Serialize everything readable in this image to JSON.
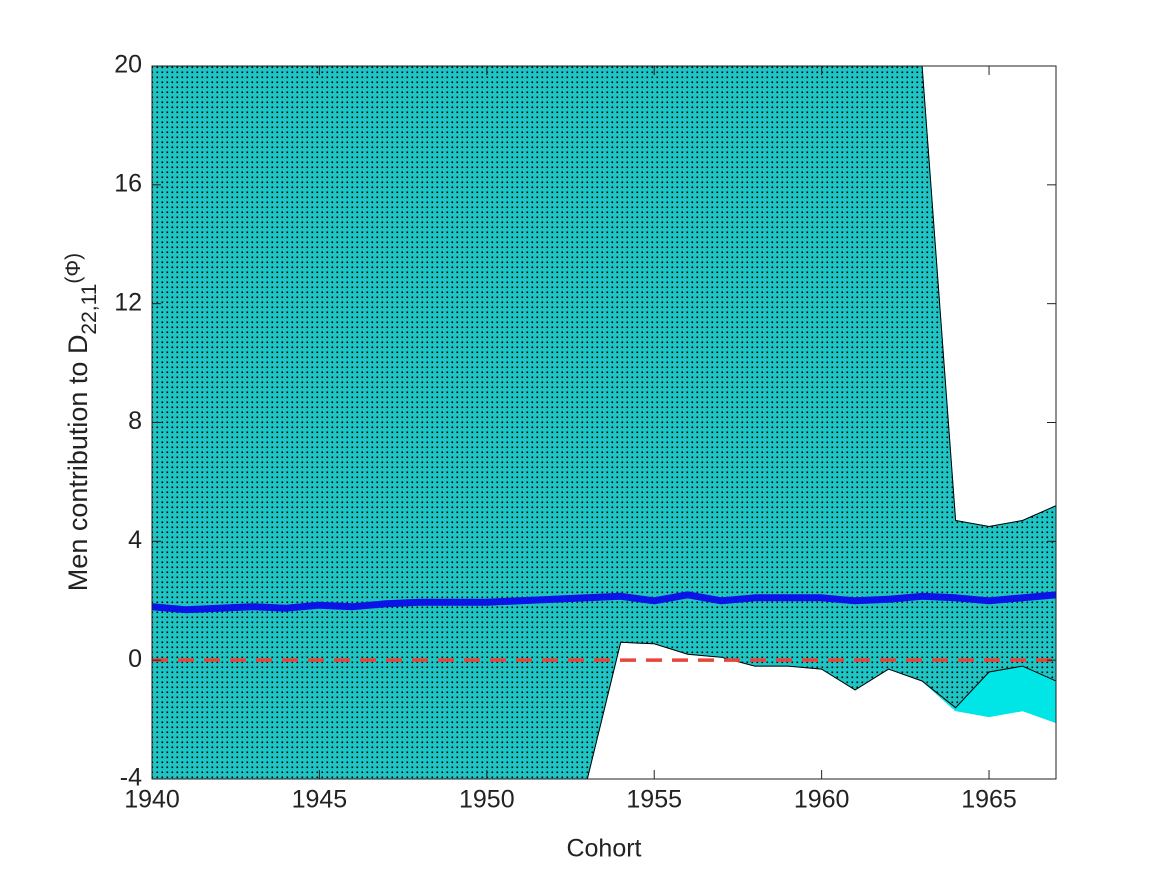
{
  "chart_data": {
    "type": "line",
    "xlabel": "Cohort",
    "ylabel": {
      "main": "Men contribution to D",
      "sub": "22,11",
      "suffix": "(Φ)"
    },
    "x": [
      1940,
      1941,
      1942,
      1943,
      1944,
      1945,
      1946,
      1947,
      1948,
      1949,
      1950,
      1951,
      1952,
      1953,
      1954,
      1955,
      1956,
      1957,
      1958,
      1959,
      1960,
      1961,
      1962,
      1963,
      1964,
      1965,
      1966,
      1967
    ],
    "xlim": [
      1940,
      1967
    ],
    "xticks": [
      1940,
      1945,
      1950,
      1955,
      1960,
      1965
    ],
    "ylim": [
      -4,
      20
    ],
    "yticks": [
      -4,
      0,
      4,
      8,
      12,
      16,
      20
    ],
    "bands": [
      {
        "color": "#00e5e5",
        "lower": [
          -4,
          -4,
          -4,
          -4,
          -4,
          -4,
          -4,
          -4,
          -4,
          -4,
          -4,
          -4,
          -4,
          -4,
          0.6,
          0.55,
          0.2,
          0.1,
          -0.2,
          -0.2,
          -0.3,
          -1.0,
          -0.3,
          -0.7,
          -1.7,
          -1.9,
          -1.7,
          -2.1
        ],
        "upper": [
          20,
          20,
          20,
          20,
          20,
          20,
          20,
          20,
          20,
          20,
          20,
          20,
          20,
          20,
          20,
          20,
          20,
          20,
          20,
          20,
          20,
          20,
          20,
          20,
          4.7,
          4.5,
          4.7,
          5.2
        ]
      },
      {
        "color": "#1fc4c4",
        "pattern": "dots",
        "lower": [
          -4,
          -4,
          -4,
          -4,
          -4,
          -4,
          -4,
          -4,
          -4,
          -4,
          -4,
          -4,
          -4,
          -4,
          0.6,
          0.55,
          0.2,
          0.1,
          -0.2,
          -0.2,
          -0.3,
          -1.0,
          -0.3,
          -0.7,
          -1.6,
          -0.4,
          -0.2,
          -0.7
        ],
        "upper": [
          20,
          20,
          20,
          20,
          20,
          20,
          20,
          20,
          20,
          20,
          20,
          20,
          20,
          20,
          20,
          20,
          20,
          20,
          20,
          20,
          20,
          20,
          20,
          20,
          4.7,
          4.5,
          4.7,
          5.2
        ]
      }
    ],
    "series": [
      {
        "color": "#0a14e6",
        "values": [
          1.8,
          1.7,
          1.75,
          1.8,
          1.75,
          1.85,
          1.8,
          1.9,
          1.95,
          1.95,
          1.95,
          2.0,
          2.05,
          2.1,
          2.15,
          2.0,
          2.2,
          2.0,
          2.1,
          2.1,
          2.1,
          2.0,
          2.05,
          2.15,
          2.1,
          2.0,
          2.1,
          2.2
        ]
      }
    ],
    "reference_line": {
      "value": 0,
      "color": "#e8463c"
    }
  }
}
